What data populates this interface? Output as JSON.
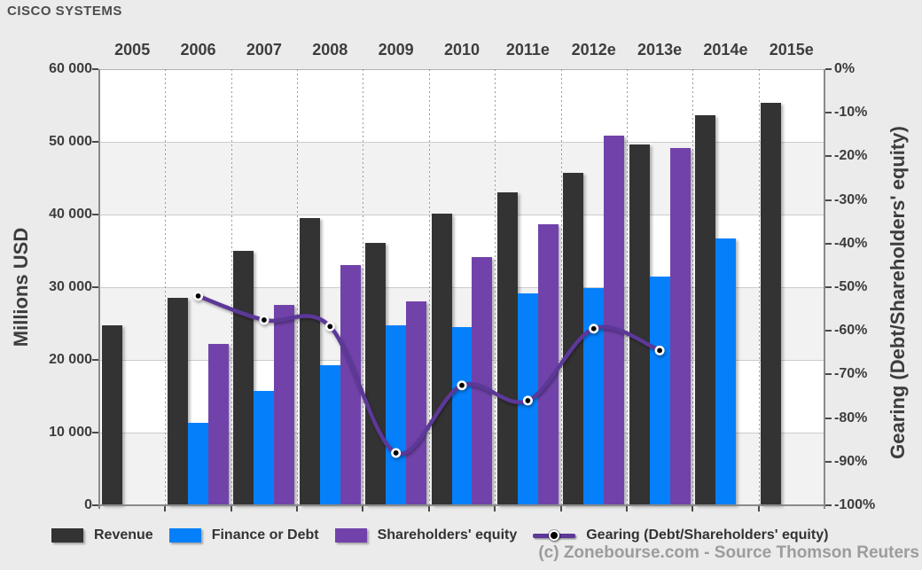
{
  "title": "CISCO SYSTEMS",
  "footer": "(c) Zonebourse.com - Source Thomson Reuters",
  "colors": {
    "background": "#ebebeb",
    "band_white": "#ffffff",
    "band_gray": "#f2f2f2",
    "gridline": "#cccccc",
    "dotted_line": "#9a9a9a",
    "axis_line": "#8a8a8a",
    "top_border": "#b3b3b3",
    "label_text": "#3d3d3d",
    "title_text": "#4d4d4d",
    "footer_text": "#9c9c9c",
    "revenue": "#333333",
    "finance_or_debt": "#0580fa",
    "shareholders_equity": "#7143aa",
    "gearing_line": "#5c3898"
  },
  "legend": {
    "items": [
      {
        "label": "Revenue",
        "symbol": "swatch",
        "color_key": "revenue"
      },
      {
        "label": "Finance or Debt",
        "symbol": "swatch",
        "color_key": "finance_or_debt"
      },
      {
        "label": "Shareholders' equity",
        "symbol": "swatch",
        "color_key": "shareholders_equity"
      },
      {
        "label": "Gearing (Debt/Shareholders' equity)",
        "symbol": "line-dot",
        "color_key": "gearing_line"
      }
    ]
  },
  "chart_data": {
    "type": "bar",
    "subtype": "grouped bars with overlay line",
    "categories": [
      "2005",
      "2006",
      "2007",
      "2008",
      "2009",
      "2010",
      "2011e",
      "2012e",
      "2013e",
      "2014e",
      "2015e"
    ],
    "series": [
      {
        "name": "Revenue",
        "type": "bar",
        "axis": "left",
        "color_key": "revenue",
        "values": [
          24800,
          28500,
          35000,
          39500,
          36100,
          40100,
          43100,
          45700,
          49600,
          53700,
          55400
        ]
      },
      {
        "name": "Finance or Debt",
        "type": "bar",
        "axis": "left",
        "color_key": "finance_or_debt",
        "values": [
          null,
          11300,
          15700,
          19300,
          24700,
          24500,
          29200,
          29900,
          31500,
          36700,
          null
        ]
      },
      {
        "name": "Shareholders' equity",
        "type": "bar",
        "axis": "left",
        "color_key": "shareholders_equity",
        "values": [
          null,
          22200,
          27600,
          33000,
          28100,
          34200,
          38600,
          50800,
          49100,
          null,
          null
        ]
      },
      {
        "name": "Gearing (Debt/Shareholders' equity)",
        "type": "line",
        "axis": "right",
        "color_key": "gearing_line",
        "values": [
          null,
          -52,
          -57.5,
          -59,
          -88,
          -72.5,
          -76,
          -59.5,
          -64.5,
          null,
          null
        ]
      }
    ],
    "left_axis": {
      "title": "Millions USD",
      "min": 0,
      "max": 60000,
      "step": 10000,
      "tick_labels_top_to_bottom": [
        "60 000",
        "50 000",
        "40 000",
        "30 000",
        "20 000",
        "10 000",
        "0"
      ]
    },
    "right_axis": {
      "title": "Gearing (Debt/Shareholders' equity)",
      "min": -100,
      "max": 0,
      "step": 10,
      "tick_labels_top_to_bottom": [
        "0%",
        "-10%",
        "-20%",
        "-30%",
        "-40%",
        "-50%",
        "-60%",
        "-70%",
        "-80%",
        "-90%",
        "-100%"
      ]
    },
    "grid": true,
    "legend_position": "bottom",
    "x_labels_position": "top"
  }
}
